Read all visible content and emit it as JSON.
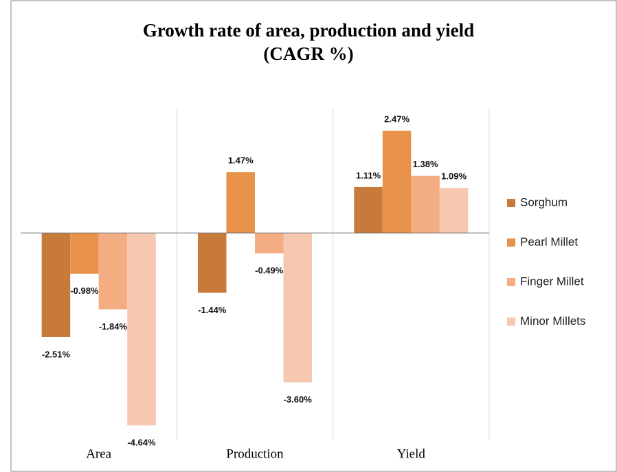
{
  "chart_data": {
    "type": "bar",
    "title": [
      "Growth rate of area, production and yield",
      "(CAGR %)"
    ],
    "categories": [
      "Area",
      "Production",
      "Yield"
    ],
    "series": [
      {
        "name": "Sorghum",
        "color": "#c77a3a",
        "values": [
          -2.51,
          -1.44,
          1.11
        ],
        "value_labels": [
          "-2.51%",
          "-1.44%",
          "1.11%"
        ]
      },
      {
        "name": "Pearl  Millet",
        "color": "#e8914a",
        "values": [
          -0.98,
          1.47,
          2.47
        ],
        "value_labels": [
          "-0.98%",
          "1.47%",
          "2.47%"
        ]
      },
      {
        "name": "Finger Millet",
        "color": "#f4ad82",
        "values": [
          -1.84,
          -0.49,
          1.38
        ],
        "value_labels": [
          "-1.84%",
          "-0.49%",
          "1.38%"
        ]
      },
      {
        "name": "Minor  Millets",
        "color": "#f7c8b0",
        "values": [
          -4.64,
          -3.6,
          1.09
        ],
        "value_labels": [
          "-4.64%",
          "-3.60%",
          "1.09%"
        ]
      }
    ],
    "ylim": [
      -5,
      3
    ]
  }
}
